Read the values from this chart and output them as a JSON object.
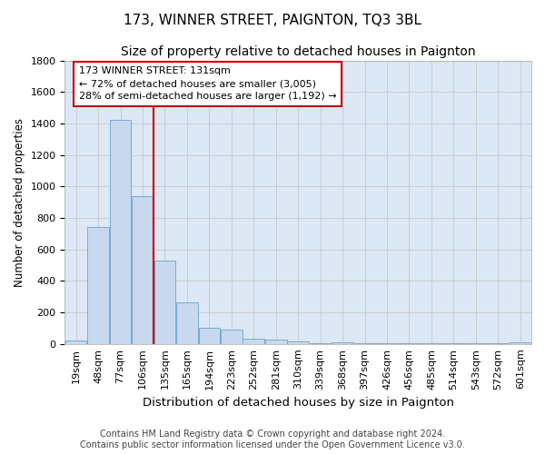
{
  "title": "173, WINNER STREET, PAIGNTON, TQ3 3BL",
  "subtitle": "Size of property relative to detached houses in Paignton",
  "xlabel": "Distribution of detached houses by size in Paignton",
  "ylabel": "Number of detached properties",
  "bar_color": "#c8d8ee",
  "bar_edge_color": "#7aaad0",
  "grid_color": "#cccccc",
  "bg_color": "#ffffff",
  "plot_bg_color": "#dce8f5",
  "annotation_line_color": "#cc0000",
  "annotation_box_color": "#cc0000",
  "annotation_text": "173 WINNER STREET: 131sqm\n← 72% of detached houses are smaller (3,005)\n28% of semi-detached houses are larger (1,192) →",
  "property_line_x": 3.5,
  "categories": [
    "19sqm",
    "48sqm",
    "77sqm",
    "106sqm",
    "135sqm",
    "165sqm",
    "194sqm",
    "223sqm",
    "252sqm",
    "281sqm",
    "310sqm",
    "339sqm",
    "368sqm",
    "397sqm",
    "426sqm",
    "456sqm",
    "485sqm",
    "514sqm",
    "543sqm",
    "572sqm",
    "601sqm"
  ],
  "values": [
    20,
    740,
    1420,
    940,
    530,
    265,
    105,
    90,
    35,
    25,
    15,
    2,
    10,
    2,
    2,
    2,
    2,
    2,
    2,
    2,
    10
  ],
  "ylim": [
    0,
    1800
  ],
  "yticks": [
    0,
    200,
    400,
    600,
    800,
    1000,
    1200,
    1400,
    1600,
    1800
  ],
  "footer": "Contains HM Land Registry data © Crown copyright and database right 2024.\nContains public sector information licensed under the Open Government Licence v3.0.",
  "title_fontsize": 11,
  "subtitle_fontsize": 10,
  "xlabel_fontsize": 9.5,
  "ylabel_fontsize": 8.5,
  "tick_fontsize": 8,
  "annotation_fontsize": 8,
  "footer_fontsize": 7
}
